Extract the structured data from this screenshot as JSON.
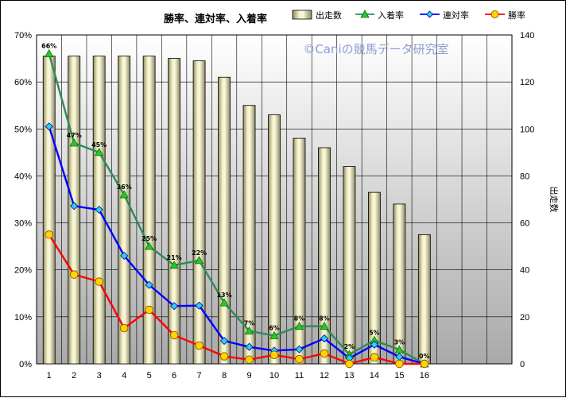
{
  "chart_data": {
    "type": "bar",
    "title": "勝率、連対率、入着率",
    "watermark": "©Caniの競馬データ研究室",
    "categories": [
      "1",
      "2",
      "3",
      "4",
      "5",
      "6",
      "7",
      "8",
      "9",
      "10",
      "11",
      "12",
      "13",
      "14",
      "15",
      "16"
    ],
    "bar_series": {
      "name": "出走数",
      "axis": "right",
      "values": [
        131,
        131,
        131,
        131,
        131,
        130,
        129,
        122,
        110,
        106,
        96,
        92,
        84,
        73,
        68,
        55
      ]
    },
    "line_series": [
      {
        "name": "入着率",
        "color": "#2e8b57",
        "marker": "triangle",
        "marker_color": "#22cc22",
        "values": [
          66,
          47,
          45,
          36,
          25,
          21,
          22,
          13,
          7,
          6,
          8,
          8,
          2,
          5,
          3,
          0
        ]
      },
      {
        "name": "連対率",
        "color": "#0000ff",
        "marker": "diamond",
        "marker_color": "#2ad4ee",
        "values": [
          50.5,
          33.6,
          32.8,
          23,
          16.8,
          12.3,
          12.4,
          4.9,
          3.6,
          2.8,
          3.1,
          5.4,
          1.2,
          4.1,
          1.5,
          0
        ]
      },
      {
        "name": "勝率",
        "color": "#ff0000",
        "marker": "circle",
        "marker_color": "#ffd400",
        "values": [
          27.5,
          19,
          17.5,
          7.6,
          11.5,
          6.1,
          3.9,
          1.6,
          0.9,
          1.9,
          1,
          2.2,
          0,
          1.4,
          0,
          0
        ]
      }
    ],
    "data_labels": [
      "66%",
      "47%",
      "45%",
      "36%",
      "25%",
      "21%",
      "22%",
      "13%",
      "7%",
      "6%",
      "8%",
      "8%",
      "2%",
      "5%",
      "3%",
      "0%"
    ],
    "y_left": {
      "min": 0,
      "max": 70,
      "step": 10,
      "ticks": [
        "0%",
        "10%",
        "20%",
        "30%",
        "40%",
        "50%",
        "60%",
        "70%"
      ]
    },
    "y_right": {
      "min": 0,
      "max": 140,
      "step": 20,
      "ticks": [
        "0",
        "20",
        "40",
        "60",
        "80",
        "100",
        "120",
        "140"
      ],
      "label": "出走数"
    },
    "x_slots": 19,
    "grid": true,
    "legend_position": "top-right",
    "legend": [
      "出走数",
      "入着率",
      "連対率",
      "勝率"
    ]
  }
}
